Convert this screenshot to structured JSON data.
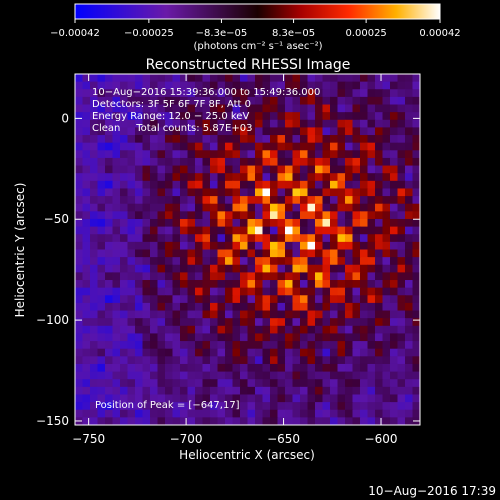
{
  "chart_data": {
    "type": "heatmap",
    "title": "Reconstructed RHESSI Image",
    "xlabel": "Heliocentric X (arcsec)",
    "ylabel": "Heliocentric Y (arcsec)",
    "xlim": [
      -757,
      -580
    ],
    "ylim": [
      -152,
      22
    ],
    "x_ticks": [
      -750,
      -700,
      -650,
      -600
    ],
    "y_ticks": [
      0,
      -50,
      -100,
      -150
    ],
    "colorbar": {
      "label": "(photons cm⁻² s⁻¹ asec⁻²)",
      "range": [
        -0.00042,
        0.00042
      ],
      "ticks": [
        -0.00042,
        -0.00025,
        -8.3e-05,
        8.3e-05,
        0.00025,
        0.00042
      ],
      "tick_labels": [
        "−0.00042",
        "−0.00025",
        "−8.3e−05",
        "8.3e−05",
        "0.00025",
        "0.00042"
      ]
    },
    "annotations": [
      "10−Aug−2016 15:39:36.000 to 15:49:36.000",
      "Detectors: 3F 5F 6F 7F 8F, Att 0",
      "Energy Range: 12.0 − 25.0 keV",
      "Clean     Total counts: 5.87E+03"
    ],
    "peak_label": "Position of Peak = [−647,17]",
    "peak": [
      -647,
      17
    ],
    "footer": "10−Aug−2016 17:39"
  }
}
